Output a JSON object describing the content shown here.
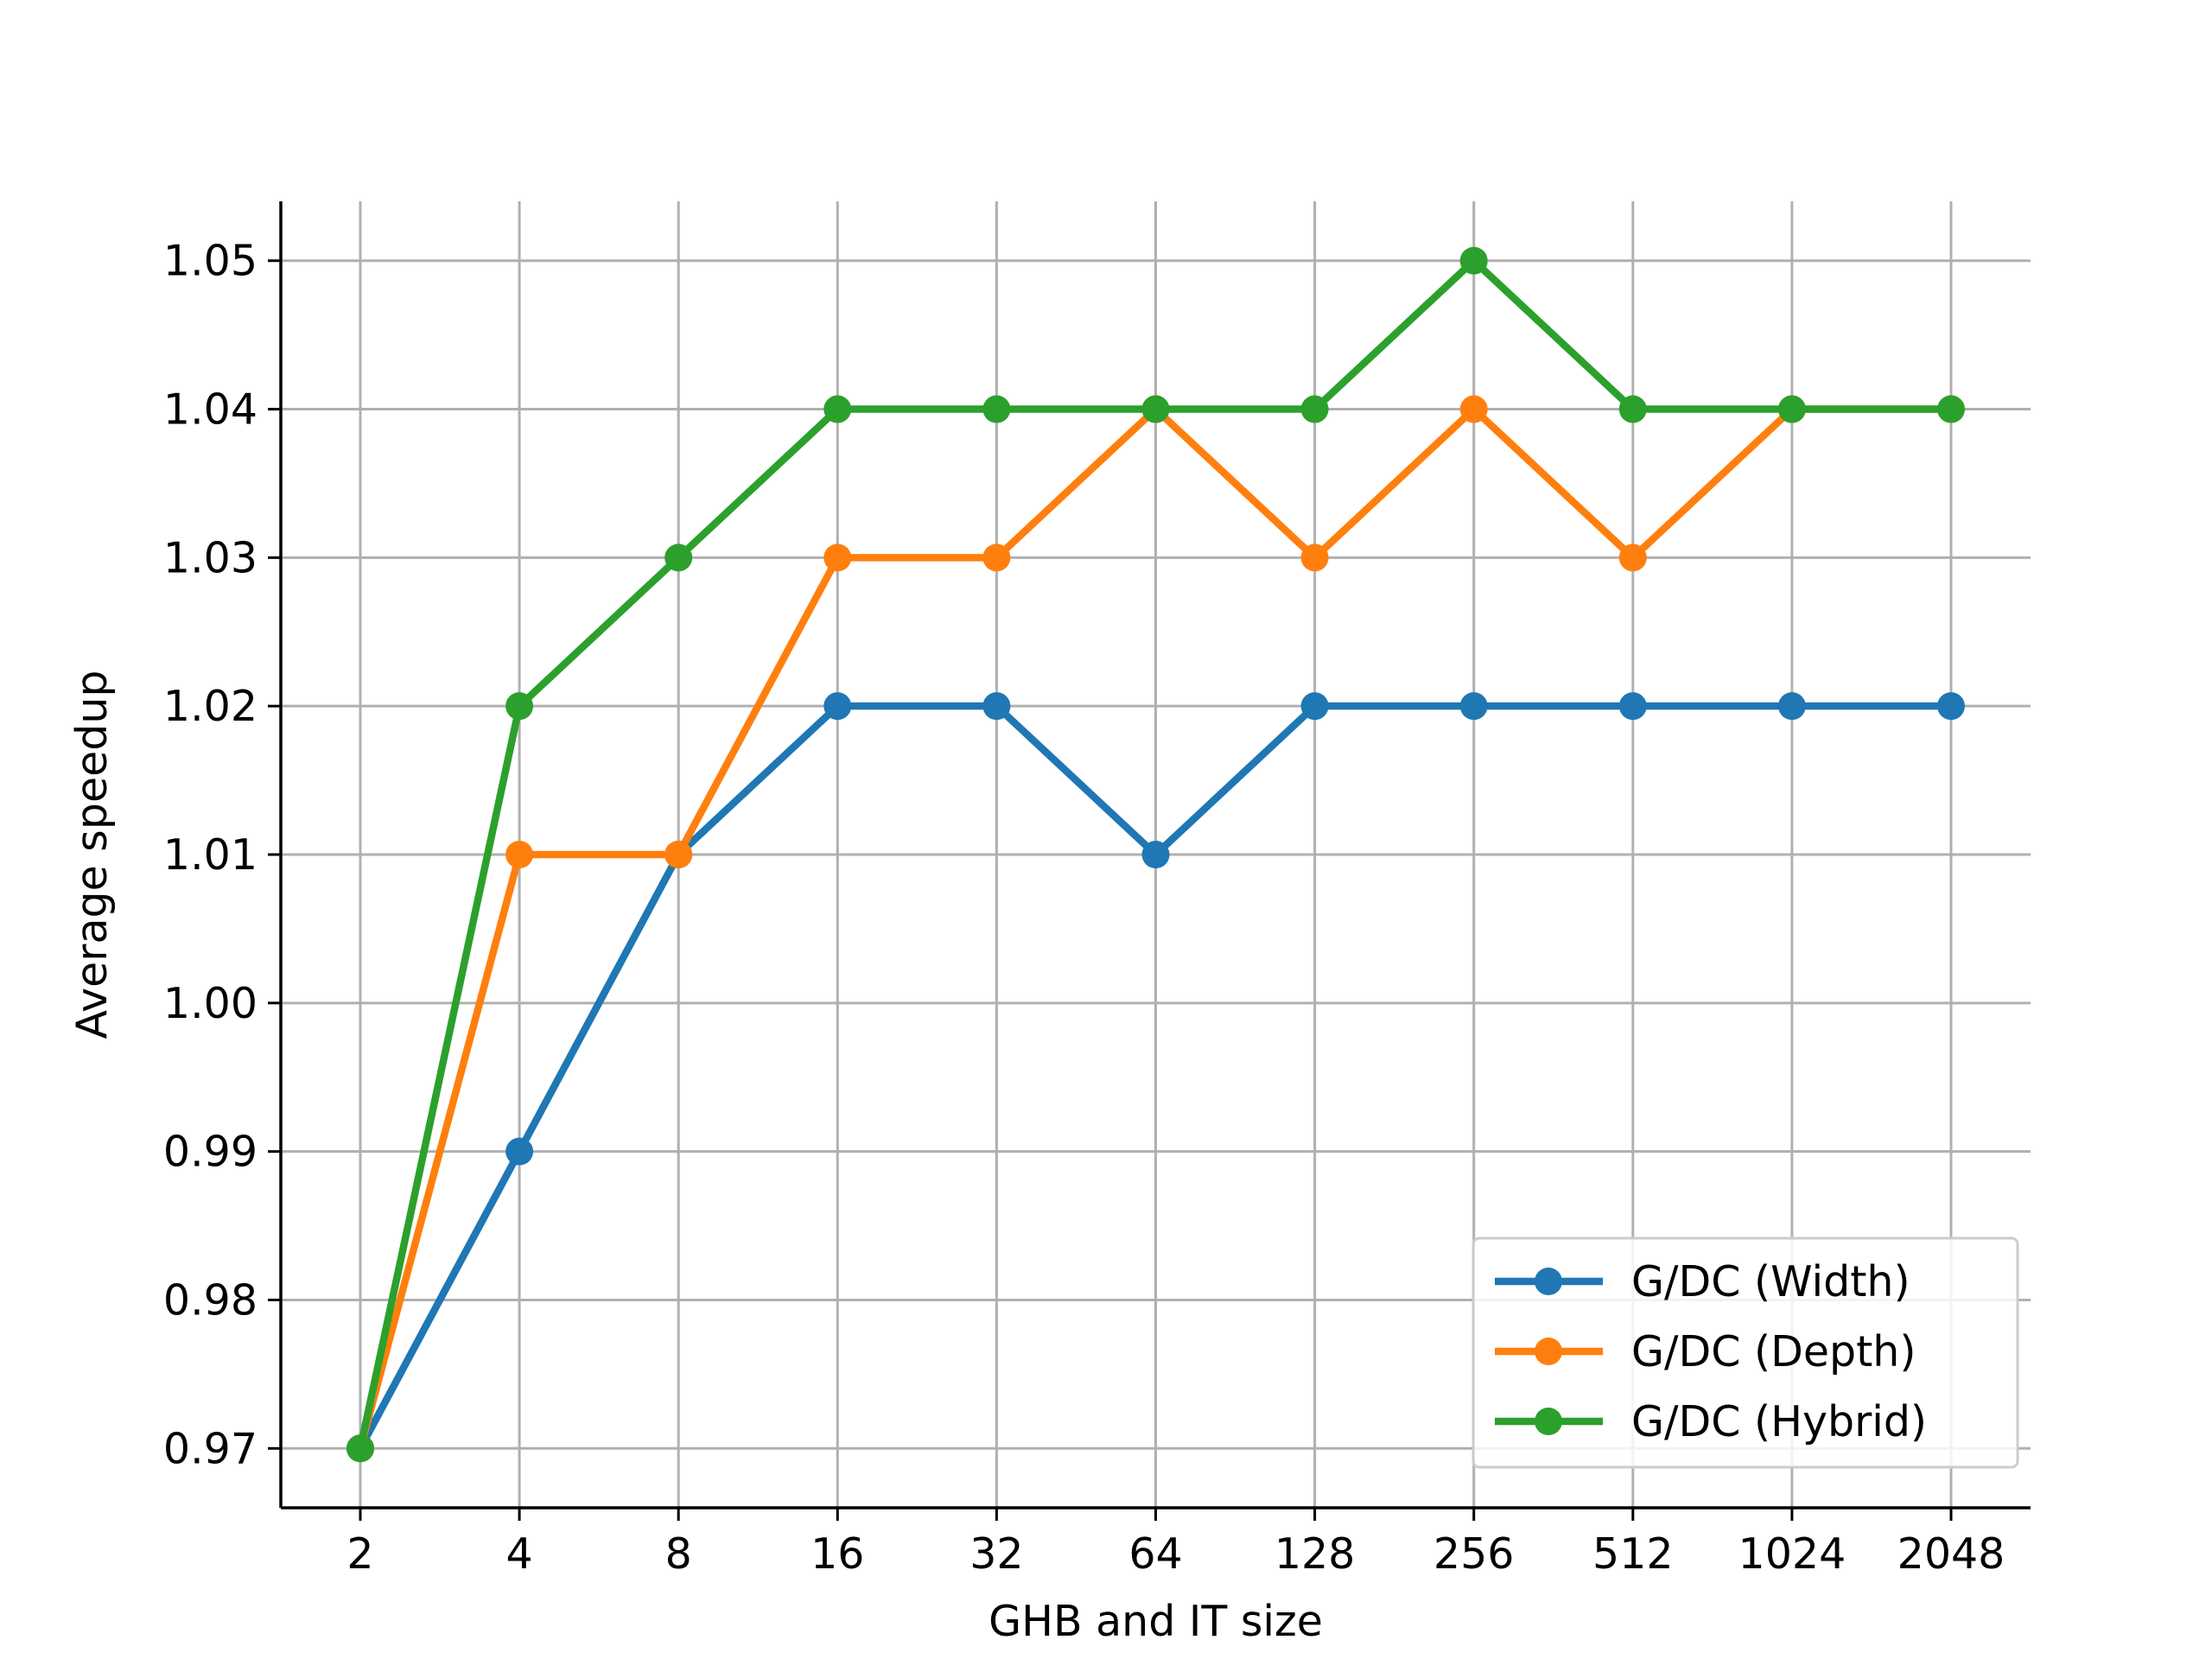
{
  "chart_data": {
    "type": "line",
    "title": "",
    "xlabel": "GHB and IT size",
    "ylabel": "Average speedup",
    "categories": [
      "2",
      "4",
      "8",
      "16",
      "32",
      "64",
      "128",
      "256",
      "512",
      "1024",
      "2048"
    ],
    "x_scale": "log2 (categorical ticks)",
    "ylim": [
      0.966,
      1.054
    ],
    "yticks": [
      0.97,
      0.98,
      0.99,
      1.0,
      1.01,
      1.02,
      1.03,
      1.04,
      1.05
    ],
    "ytick_labels": [
      "0.97",
      "0.98",
      "0.99",
      "1.00",
      "1.01",
      "1.02",
      "1.03",
      "1.04",
      "1.05"
    ],
    "grid": true,
    "legend_position": "lower-right",
    "series": [
      {
        "name": "G/DC (Width)",
        "color": "#1f77b4",
        "values": [
          0.97,
          0.99,
          1.01,
          1.02,
          1.02,
          1.01,
          1.02,
          1.02,
          1.02,
          1.02,
          1.02
        ]
      },
      {
        "name": "G/DC (Depth)",
        "color": "#ff7f0e",
        "values": [
          0.97,
          1.01,
          1.01,
          1.03,
          1.03,
          1.04,
          1.03,
          1.04,
          1.03,
          1.04,
          1.04
        ]
      },
      {
        "name": "G/DC (Hybrid)",
        "color": "#2ca02c",
        "values": [
          0.97,
          1.02,
          1.03,
          1.04,
          1.04,
          1.04,
          1.04,
          1.05,
          1.04,
          1.04,
          1.04
        ]
      }
    ]
  }
}
